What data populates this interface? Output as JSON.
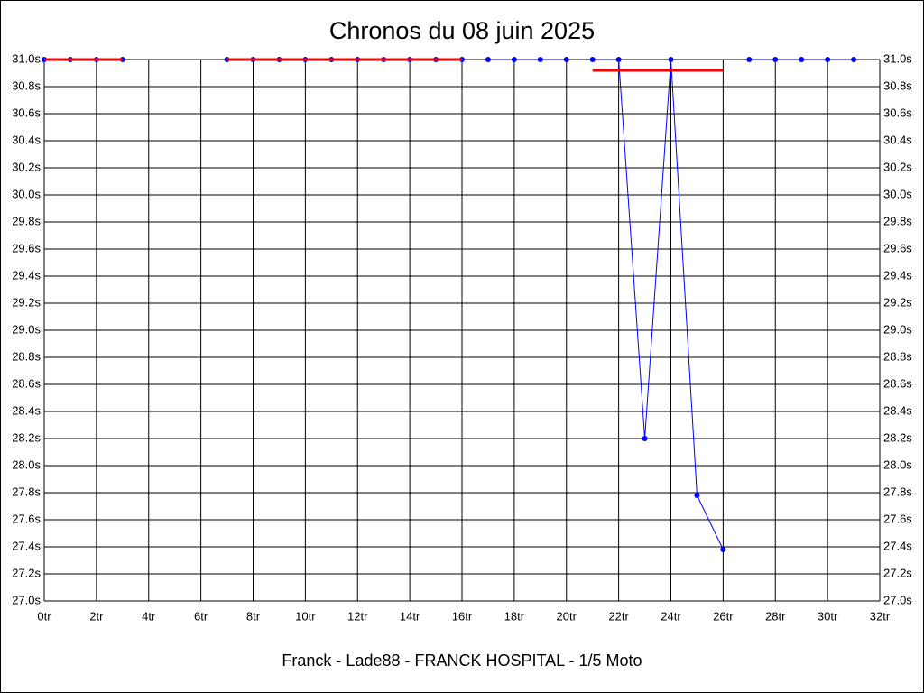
{
  "chart_data": {
    "type": "line",
    "title": "Chronos du 08 juin 2025",
    "xlabel": "Franck - Lade88 - FRANCK HOSPITAL - 1/5 Moto",
    "xlim": [
      0,
      32
    ],
    "ylim": [
      27.0,
      31.0
    ],
    "grid": true,
    "right_axis": true,
    "xticks": [
      {
        "value": 0,
        "label": "0tr"
      },
      {
        "value": 2,
        "label": "2tr"
      },
      {
        "value": 4,
        "label": "4tr"
      },
      {
        "value": 6,
        "label": "6tr"
      },
      {
        "value": 8,
        "label": "8tr"
      },
      {
        "value": 10,
        "label": "10tr"
      },
      {
        "value": 12,
        "label": "12tr"
      },
      {
        "value": 14,
        "label": "14tr"
      },
      {
        "value": 16,
        "label": "16tr"
      },
      {
        "value": 18,
        "label": "18tr"
      },
      {
        "value": 20,
        "label": "20tr"
      },
      {
        "value": 22,
        "label": "22tr"
      },
      {
        "value": 24,
        "label": "24tr"
      },
      {
        "value": 26,
        "label": "26tr"
      },
      {
        "value": 28,
        "label": "28tr"
      },
      {
        "value": 30,
        "label": "30tr"
      },
      {
        "value": 32,
        "label": "32tr"
      }
    ],
    "yticks": [
      {
        "value": 27.0,
        "label": "27.0s"
      },
      {
        "value": 27.2,
        "label": "27.2s"
      },
      {
        "value": 27.4,
        "label": "27.4s"
      },
      {
        "value": 27.6,
        "label": "27.6s"
      },
      {
        "value": 27.8,
        "label": "27.8s"
      },
      {
        "value": 28.0,
        "label": "28.0s"
      },
      {
        "value": 28.2,
        "label": "28.2s"
      },
      {
        "value": 28.4,
        "label": "28.4s"
      },
      {
        "value": 28.6,
        "label": "28.6s"
      },
      {
        "value": 28.8,
        "label": "28.8s"
      },
      {
        "value": 29.0,
        "label": "29.0s"
      },
      {
        "value": 29.2,
        "label": "29.2s"
      },
      {
        "value": 29.4,
        "label": "29.4s"
      },
      {
        "value": 29.6,
        "label": "29.6s"
      },
      {
        "value": 29.8,
        "label": "29.8s"
      },
      {
        "value": 30.0,
        "label": "30.0s"
      },
      {
        "value": 30.2,
        "label": "30.2s"
      },
      {
        "value": 30.4,
        "label": "30.4s"
      },
      {
        "value": 30.6,
        "label": "30.6s"
      },
      {
        "value": 30.8,
        "label": "30.8s"
      },
      {
        "value": 31.0,
        "label": "31.0s"
      }
    ],
    "series": [
      {
        "color": "#0000ff",
        "markers": true,
        "x": [
          0,
          1,
          2,
          3
        ],
        "values": [
          31.0,
          31.0,
          31.0,
          31.0
        ]
      },
      {
        "color": "#0000ff",
        "markers": true,
        "x": [
          7,
          8,
          9,
          10,
          11,
          12,
          13,
          14,
          15,
          16
        ],
        "values": [
          31.0,
          31.0,
          31.0,
          31.0,
          31.0,
          31.0,
          31.0,
          31.0,
          31.0,
          31.0
        ]
      },
      {
        "color": "#0000ff",
        "markers": true,
        "x": [
          17,
          18,
          19,
          20
        ],
        "values": [
          31.0,
          31.0,
          31.0,
          31.0
        ]
      },
      {
        "color": "#0000ff",
        "markers": true,
        "x": [
          21,
          22,
          23,
          24,
          25,
          26
        ],
        "values": [
          31.0,
          31.0,
          28.2,
          31.0,
          27.78,
          27.38
        ]
      },
      {
        "color": "#0000ff",
        "markers": true,
        "x": [
          27,
          28,
          29,
          30,
          31
        ],
        "values": [
          31.0,
          31.0,
          31.0,
          31.0,
          31.0
        ]
      },
      {
        "color": "#ff0000",
        "markers": false,
        "x": [
          0,
          3
        ],
        "values": [
          31.0,
          31.0
        ]
      },
      {
        "color": "#ff0000",
        "markers": false,
        "x": [
          7,
          16
        ],
        "values": [
          31.0,
          31.0
        ]
      },
      {
        "color": "#ff0000",
        "markers": false,
        "x": [
          21,
          26
        ],
        "values": [
          30.92,
          30.92
        ]
      }
    ]
  }
}
